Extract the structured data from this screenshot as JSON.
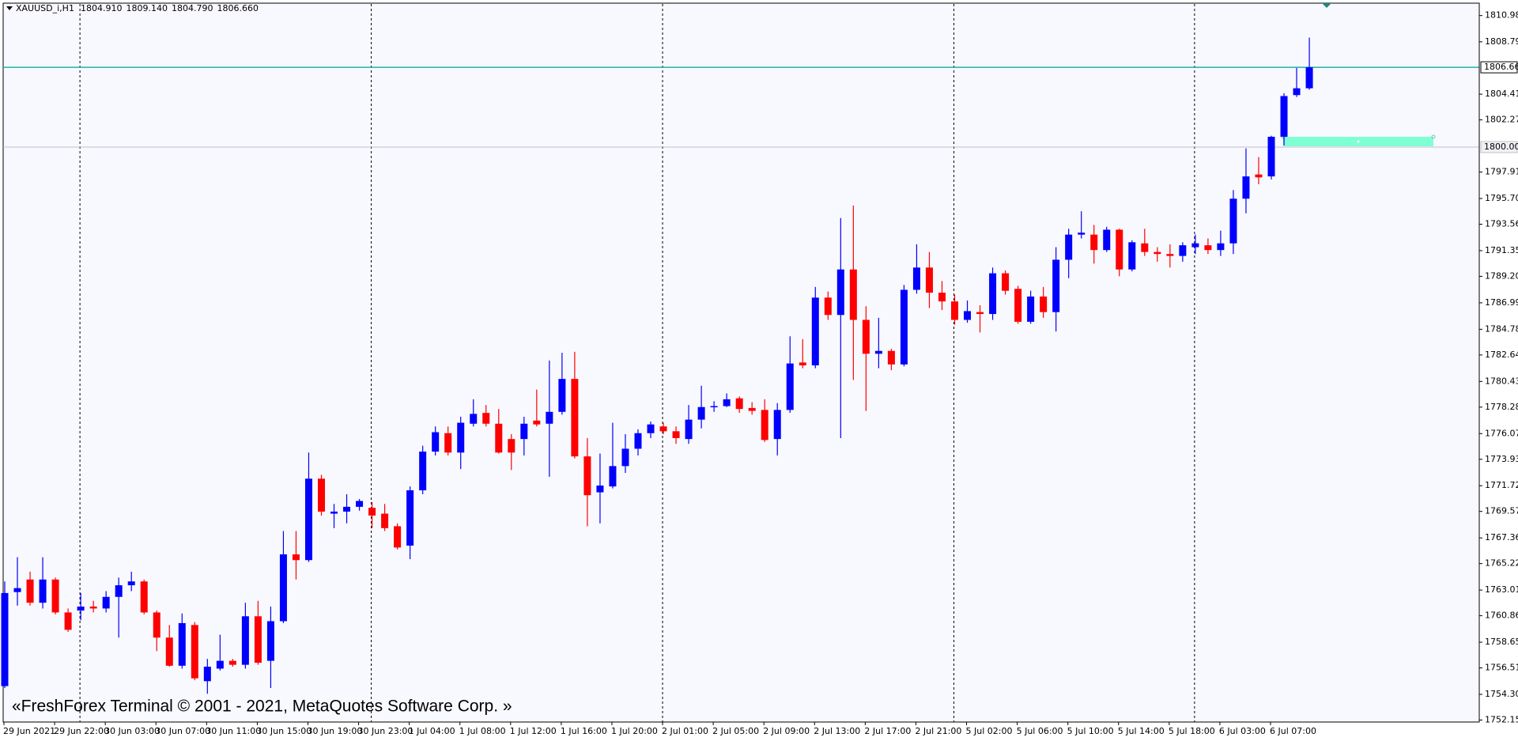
{
  "chart_data": {
    "type": "candlestick",
    "title": "XAUUSD_i,H1",
    "title_values": [
      1804.91,
      1809.14,
      1804.79,
      1806.66
    ],
    "title_value_labels": [
      "1804.910",
      "1809.140",
      "1804.790",
      "1806.660"
    ],
    "watermark": "«FreshForex Terminal © 2001 - 2021, MetaQuotes Software Corp. »",
    "up_color": "#0000ff",
    "down_color": "#ff0000",
    "categories": [
      "29 Jun 2021",
      null,
      null,
      null,
      "29 Jun 22:00",
      null,
      null,
      null,
      "30 Jun 03:00",
      null,
      null,
      null,
      "30 Jun 07:00",
      null,
      null,
      null,
      "30 Jun 11:00",
      null,
      null,
      null,
      "30 Jun 15:00",
      null,
      null,
      null,
      "30 Jun 19:00",
      null,
      null,
      null,
      "30 Jun 23:00",
      null,
      null,
      null,
      "1 Jul 04:00",
      null,
      null,
      null,
      "1 Jul 08:00",
      null,
      null,
      null,
      "1 Jul 12:00",
      null,
      null,
      null,
      "1 Jul 16:00",
      null,
      null,
      null,
      "1 Jul 20:00",
      null,
      null,
      null,
      "2 Jul 01:00",
      null,
      null,
      null,
      "2 Jul 05:00",
      null,
      null,
      null,
      "2 Jul 09:00",
      null,
      null,
      null,
      "2 Jul 13:00",
      null,
      null,
      null,
      "2 Jul 17:00",
      null,
      null,
      null,
      "2 Jul 21:00",
      null,
      null,
      null,
      "5 Jul 02:00",
      null,
      null,
      null,
      "5 Jul 06:00",
      null,
      null,
      null,
      "5 Jul 10:00",
      null,
      null,
      null,
      "5 Jul 14:00",
      null,
      null,
      null,
      "5 Jul 18:00",
      null,
      null,
      null,
      "6 Jul 03:00",
      null,
      null,
      null,
      "6 Jul 07:00",
      null,
      null,
      null
    ],
    "open": [
      1754.99,
      1762.84,
      1763.89,
      1761.95,
      1763.89,
      1761.14,
      1761.3,
      1761.63,
      1761.47,
      1762.44,
      1763.41,
      1763.73,
      1761.14,
      1759.04,
      1756.69,
      1760.09,
      1755.4,
      1756.45,
      1757.1,
      1756.77,
      1760.82,
      1757.1,
      1760.41,
      1765.99,
      1765.51,
      1772.31,
      1769.39,
      1769.56,
      1769.96,
      1769.88,
      1769.39,
      1768.34,
      1766.72,
      1771.34,
      1774.57,
      1776.11,
      1774.49,
      1776.9,
      1777.8,
      1776.9,
      1775.62,
      1775.62,
      1777.16,
      1776.9,
      1777.89,
      1780.64,
      1774.17,
      1771.17,
      1771.66,
      1773.36,
      1774.81,
      1776.11,
      1776.67,
      1776.27,
      1775.62,
      1777.24,
      1778.29,
      1778.37,
      1779.02,
      1778.21,
      1778.05,
      1775.62,
      1778.05,
      1782.01,
      1781.77,
      1787.43,
      1785.98,
      1789.78,
      1785.57,
      1782.74,
      1782.98,
      1781.85,
      1788.08,
      1789.94,
      1787.84,
      1787.11,
      1785.57,
      1786.22,
      1786.06,
      1789.46,
      1788.16,
      1785.41,
      1787.52,
      1786.22,
      1790.59,
      1792.69,
      1792.69,
      1791.4,
      1793.1,
      1789.78,
      1791.96,
      1791.24,
      1791.07,
      1790.91,
      1791.64,
      1791.8,
      1791.4,
      1791.96,
      1795.69,
      1797.71,
      1797.55,
      1800.86,
      1804.34,
      1804.91
    ],
    "high": [
      1763.73,
      1765.75,
      1764.54,
      1765.75,
      1764.05,
      1761.47,
      1762.76,
      1762.11,
      1762.92,
      1764.05,
      1764.54,
      1763.89,
      1761.3,
      1760.09,
      1761.06,
      1760.33,
      1757.26,
      1759.28,
      1757.26,
      1761.95,
      1762.11,
      1761.63,
      1767.94,
      1767.94,
      1774.49,
      1772.63,
      1770.2,
      1771.01,
      1770.61,
      1770.36,
      1770.2,
      1768.58,
      1771.66,
      1775.06,
      1776.67,
      1776.67,
      1777.48,
      1778.94,
      1778.46,
      1778.13,
      1776.03,
      1777.48,
      1779.75,
      1782.18,
      1782.82,
      1782.9,
      1775.7,
      1774.41,
      1776.98,
      1776.03,
      1776.43,
      1777.08,
      1776.98,
      1776.67,
      1778.46,
      1780.07,
      1778.78,
      1779.43,
      1779.18,
      1778.7,
      1778.94,
      1778.62,
      1784.2,
      1783.96,
      1788.32,
      1787.94,
      1794.07,
      1795.12,
      1786.71,
      1785.74,
      1783.15,
      1788.49,
      1791.88,
      1791.24,
      1788.81,
      1787.68,
      1787.19,
      1786.79,
      1789.94,
      1789.7,
      1788.41,
      1788.0,
      1788.32,
      1791.64,
      1793.18,
      1794.64,
      1793.5,
      1793.34,
      1793.18,
      1792.21,
      1793.18,
      1791.64,
      1791.88,
      1792.05,
      1792.69,
      1792.37,
      1793.02,
      1796.41,
      1799.89,
      1799.16,
      1800.94,
      1804.5,
      1806.61,
      1809.14
    ],
    "low": [
      1754.83,
      1761.71,
      1761.71,
      1761.47,
      1760.98,
      1759.52,
      1760.49,
      1761.14,
      1761.14,
      1759.04,
      1762.92,
      1760.98,
      1757.91,
      1756.61,
      1756.45,
      1755.48,
      1754.35,
      1756.29,
      1756.61,
      1756.45,
      1756.77,
      1754.83,
      1760.25,
      1763.89,
      1765.35,
      1769.23,
      1768.18,
      1768.58,
      1769.64,
      1768.18,
      1767.94,
      1766.4,
      1765.59,
      1771.01,
      1774.25,
      1774.25,
      1773.11,
      1776.67,
      1776.67,
      1774.41,
      1773.03,
      1774.25,
      1776.67,
      1772.47,
      1777.65,
      1774.0,
      1768.34,
      1768.58,
      1771.5,
      1772.79,
      1774.25,
      1775.7,
      1776.03,
      1775.22,
      1775.22,
      1776.51,
      1777.89,
      1778.29,
      1777.81,
      1777.65,
      1775.38,
      1774.25,
      1777.81,
      1781.53,
      1781.53,
      1785.57,
      1775.7,
      1780.56,
      1777.97,
      1781.53,
      1781.37,
      1781.69,
      1787.76,
      1786.55,
      1786.39,
      1785.17,
      1785.33,
      1784.52,
      1785.57,
      1787.68,
      1785.25,
      1785.25,
      1785.74,
      1784.6,
      1789.05,
      1792.37,
      1790.27,
      1791.24,
      1789.21,
      1789.62,
      1790.91,
      1790.43,
      1789.94,
      1790.43,
      1791.07,
      1791.07,
      1790.91,
      1791.07,
      1794.47,
      1796.9,
      1797.3,
      1800.14,
      1804.18,
      1804.79
    ],
    "close": [
      1762.76,
      1763.17,
      1761.95,
      1763.89,
      1761.14,
      1759.69,
      1761.63,
      1761.47,
      1762.44,
      1763.41,
      1763.73,
      1761.14,
      1759.04,
      1756.69,
      1760.25,
      1755.64,
      1756.61,
      1757.1,
      1756.77,
      1760.82,
      1756.94,
      1760.41,
      1765.99,
      1765.51,
      1772.31,
      1769.56,
      1769.56,
      1769.96,
      1770.45,
      1769.23,
      1768.18,
      1766.56,
      1771.34,
      1774.57,
      1776.19,
      1774.49,
      1776.98,
      1777.72,
      1776.9,
      1774.49,
      1774.49,
      1776.9,
      1776.84,
      1777.89,
      1780.64,
      1774.17,
      1770.93,
      1771.74,
      1773.36,
      1774.81,
      1776.11,
      1776.84,
      1776.27,
      1775.7,
      1777.24,
      1778.29,
      1778.37,
      1778.94,
      1778.13,
      1777.97,
      1775.54,
      1778.05,
      1781.93,
      1781.77,
      1787.43,
      1785.98,
      1789.78,
      1785.57,
      1782.74,
      1782.98,
      1781.85,
      1788.08,
      1789.94,
      1787.84,
      1787.11,
      1785.57,
      1786.3,
      1786.06,
      1789.46,
      1788.0,
      1785.41,
      1787.52,
      1786.22,
      1790.59,
      1792.69,
      1792.85,
      1791.4,
      1793.1,
      1789.78,
      1792.05,
      1791.24,
      1791.07,
      1790.91,
      1791.8,
      1791.96,
      1791.4,
      1791.96,
      1795.69,
      1797.55,
      1797.47,
      1800.86,
      1804.26,
      1804.91,
      1806.66
    ],
    "ylim": [
      1751.99,
      1811.95
    ],
    "yticks": [
      {
        "value": 1810.98,
        "label": "1810.980"
      },
      {
        "value": 1808.79,
        "label": "1808.790"
      },
      {
        "value": 1804.415,
        "label": "1804.415"
      },
      {
        "value": 1802.27,
        "label": "1802.270"
      },
      {
        "value": 1797.915,
        "label": "1797.915"
      },
      {
        "value": 1795.705,
        "label": "1795.705"
      },
      {
        "value": 1793.56,
        "label": "1793.560"
      },
      {
        "value": 1791.35,
        "label": "1791.350"
      },
      {
        "value": 1789.205,
        "label": "1789.205"
      },
      {
        "value": 1786.995,
        "label": "1786.995"
      },
      {
        "value": 1784.785,
        "label": "1784.785"
      },
      {
        "value": 1782.64,
        "label": "1782.640"
      },
      {
        "value": 1780.43,
        "label": "1780.430"
      },
      {
        "value": 1778.285,
        "label": "1778.285"
      },
      {
        "value": 1776.075,
        "label": "1776.075"
      },
      {
        "value": 1773.93,
        "label": "1773.930"
      },
      {
        "value": 1771.72,
        "label": "1771.720"
      },
      {
        "value": 1769.575,
        "label": "1769.575"
      },
      {
        "value": 1767.365,
        "label": "1767.365"
      },
      {
        "value": 1765.22,
        "label": "1765.220"
      },
      {
        "value": 1763.01,
        "label": "1763.010"
      },
      {
        "value": 1760.865,
        "label": "1760.865"
      },
      {
        "value": 1758.655,
        "label": "1758.655"
      },
      {
        "value": 1756.51,
        "label": "1756.510"
      },
      {
        "value": 1754.3,
        "label": "1754.300"
      },
      {
        "value": 1752.155,
        "label": "1752.155"
      }
    ],
    "levels": [
      {
        "value": 1806.66,
        "label": "1806.660",
        "color": "#20b2aa"
      },
      {
        "value": 1800,
        "label": "1800.000",
        "color": "#c0c0c8"
      }
    ]
  }
}
